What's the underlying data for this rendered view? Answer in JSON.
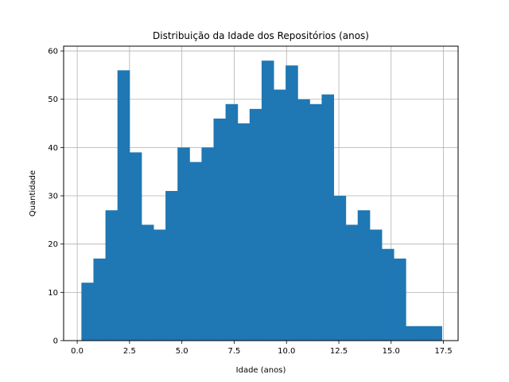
{
  "chart_data": {
    "type": "bar",
    "title": "Distribuição da Idade dos Repositórios (anos)",
    "xlabel": "Idade (anos)",
    "ylabel": "Quantidade",
    "xlim": [
      -0.65,
      18.2
    ],
    "ylim": [
      0,
      61
    ],
    "xticks": [
      0.0,
      2.5,
      5.0,
      7.5,
      10.0,
      12.5,
      15.0,
      17.5
    ],
    "xtick_labels": [
      "0.0",
      "2.5",
      "5.0",
      "7.5",
      "10.0",
      "12.5",
      "15.0",
      "17.5"
    ],
    "yticks": [
      0,
      10,
      20,
      30,
      40,
      50,
      60
    ],
    "ytick_labels": [
      "0",
      "10",
      "20",
      "30",
      "40",
      "50",
      "60"
    ],
    "grid": true,
    "bar_color": "#1f77b4",
    "bins": {
      "start": 0.2,
      "width": 0.574,
      "counts": [
        12,
        17,
        27,
        56,
        39,
        24,
        23,
        31,
        40,
        37,
        40,
        46,
        49,
        45,
        48,
        58,
        52,
        57,
        50,
        49,
        51,
        30,
        24,
        27,
        23,
        19,
        17,
        3,
        3,
        3
      ]
    }
  }
}
